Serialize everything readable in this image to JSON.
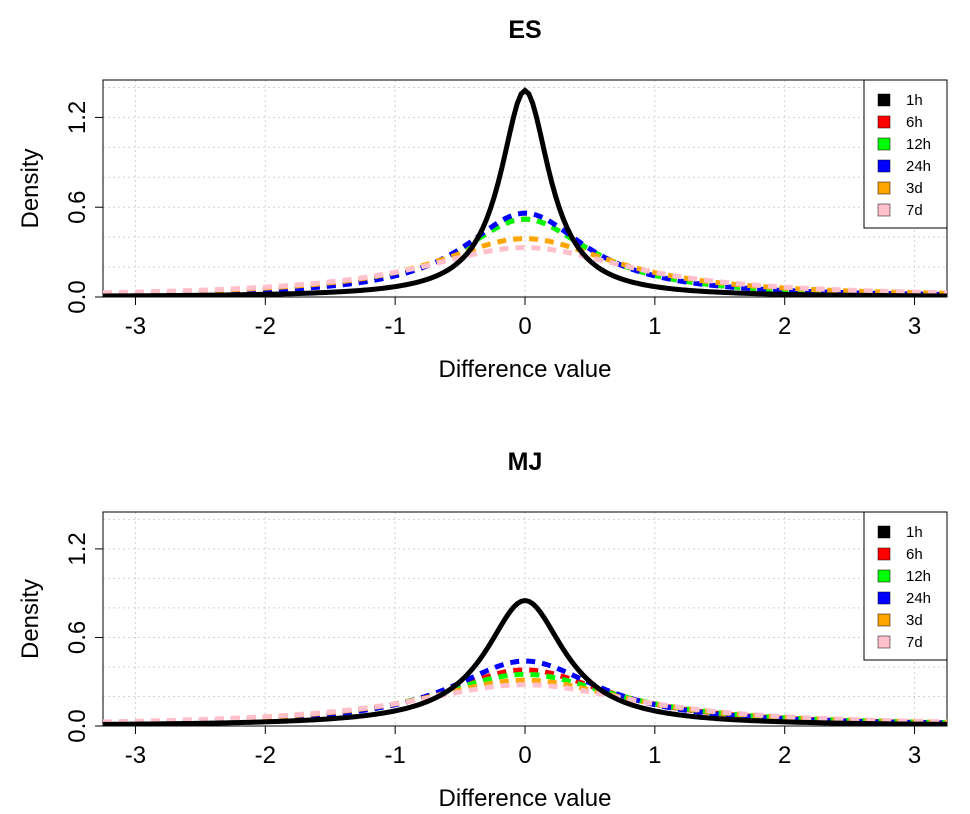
{
  "chart_data": [
    {
      "type": "line",
      "title": "ES",
      "xlabel": "Difference value",
      "ylabel": "Density",
      "xlim": [
        -3.25,
        3.25
      ],
      "ylim": [
        0,
        1.45
      ],
      "xticks": [
        -3,
        -2,
        -1,
        0,
        1,
        2,
        3
      ],
      "xtick_labels": [
        "-3",
        "-2",
        "-1",
        "0",
        "1",
        "2",
        "3"
      ],
      "yticks": [
        0.0,
        0.6,
        1.2
      ],
      "ytick_labels": [
        "0.0",
        "0.6",
        "1.2"
      ],
      "grid": true,
      "legend_position": "top-right",
      "series": [
        {
          "name": "1h",
          "color": "#000000",
          "style": "solid",
          "peak": 1.38,
          "scale": 0.23
        },
        {
          "name": "6h",
          "color": "#ff0000",
          "style": "dashed",
          "peak": 0.52,
          "scale": 0.62
        },
        {
          "name": "12h",
          "color": "#00ff00",
          "style": "dashed",
          "peak": 0.52,
          "scale": 0.62
        },
        {
          "name": "24h",
          "color": "#0000ff",
          "style": "dashed",
          "peak": 0.56,
          "scale": 0.58
        },
        {
          "name": "3d",
          "color": "#ffa500",
          "style": "dashed",
          "peak": 0.39,
          "scale": 0.85
        },
        {
          "name": "7d",
          "color": "#ffc0cb",
          "style": "dashed",
          "peak": 0.33,
          "scale": 1.0
        }
      ]
    },
    {
      "type": "line",
      "title": "MJ",
      "xlabel": "Difference value",
      "ylabel": "Density",
      "xlim": [
        -3.25,
        3.25
      ],
      "ylim": [
        0,
        1.45
      ],
      "xticks": [
        -3,
        -2,
        -1,
        0,
        1,
        2,
        3
      ],
      "xtick_labels": [
        "-3",
        "-2",
        "-1",
        "0",
        "1",
        "2",
        "3"
      ],
      "yticks": [
        0.0,
        0.6,
        1.2
      ],
      "ytick_labels": [
        "0.0",
        "0.6",
        "1.2"
      ],
      "grid": true,
      "legend_position": "top-right",
      "series": [
        {
          "name": "1h",
          "color": "#000000",
          "style": "solid",
          "peak": 0.85,
          "scale": 0.37
        },
        {
          "name": "6h",
          "color": "#ff0000",
          "style": "dashed",
          "peak": 0.38,
          "scale": 0.8
        },
        {
          "name": "12h",
          "color": "#00ff00",
          "style": "dashed",
          "peak": 0.35,
          "scale": 0.87
        },
        {
          "name": "24h",
          "color": "#0000ff",
          "style": "dashed",
          "peak": 0.44,
          "scale": 0.7
        },
        {
          "name": "3d",
          "color": "#ffa500",
          "style": "dashed",
          "peak": 0.31,
          "scale": 0.97
        },
        {
          "name": "7d",
          "color": "#ffc0cb",
          "style": "dashed",
          "peak": 0.28,
          "scale": 1.08
        }
      ]
    }
  ]
}
